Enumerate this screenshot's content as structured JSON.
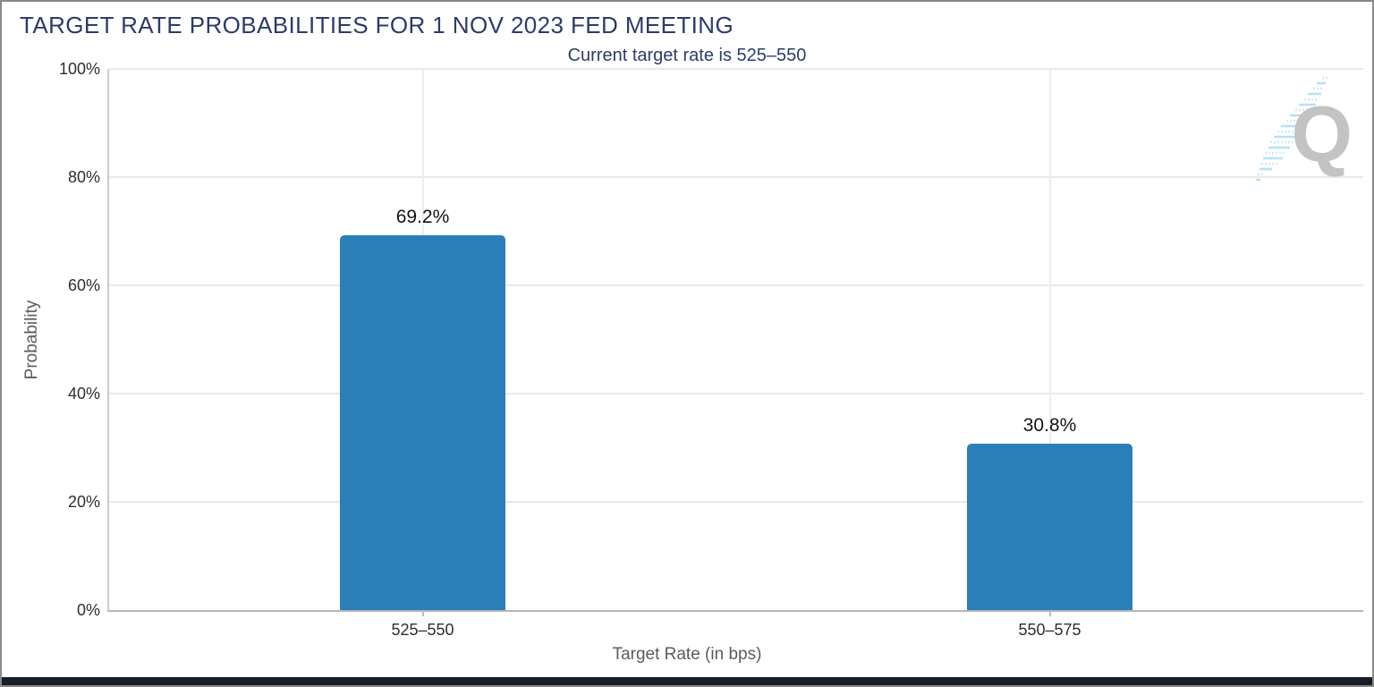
{
  "colors": {
    "bar": "#2a7fb8",
    "heading": "#2b3c6b",
    "logo_gray": "#c3c3c3",
    "logo_blue": "#b7e0f3"
  },
  "watermark": {
    "letter": "Q"
  },
  "chart_data": {
    "type": "bar",
    "title": "TARGET RATE PROBABILITIES FOR 1 NOV 2023 FED MEETING",
    "subtitle": "Current target rate is 525–550",
    "categories": [
      "525–550",
      "550–575"
    ],
    "values": [
      69.2,
      30.8
    ],
    "value_labels": [
      "69.2%",
      "30.8%"
    ],
    "xlabel": "Target Rate (in bps)",
    "ylabel": "Probability",
    "ylim": [
      0,
      100
    ],
    "yticks": [
      0,
      20,
      40,
      60,
      80,
      100
    ],
    "ytick_labels": [
      "0%",
      "20%",
      "40%",
      "60%",
      "80%",
      "100%"
    ],
    "grid": true,
    "legend": false
  }
}
